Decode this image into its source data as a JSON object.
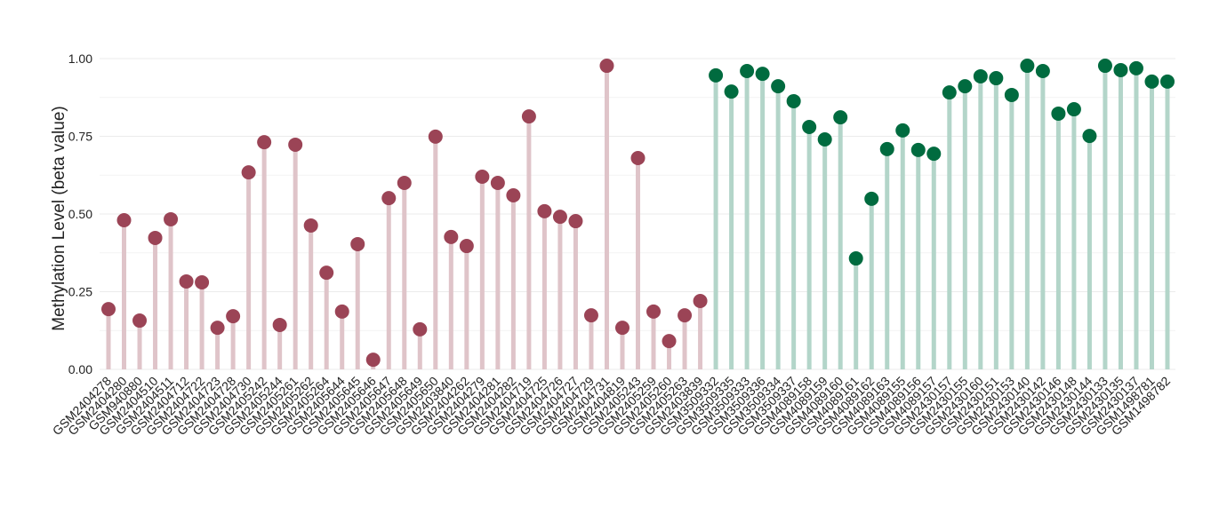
{
  "chart_data": {
    "type": "lollipop",
    "y_label": "Methylation Level (beta value)",
    "categories": [
      "GSM2404278",
      "GSM2404280",
      "GSM940880",
      "GSM2404510",
      "GSM2404511",
      "GSM2404712",
      "GSM2404722",
      "GSM2404723",
      "GSM2404728",
      "GSM2404730",
      "GSM2405242",
      "GSM2405244",
      "GSM2405261",
      "GSM2405262",
      "GSM2405264",
      "GSM2405644",
      "GSM2405645",
      "GSM2405646",
      "GSM2405647",
      "GSM2405648",
      "GSM2405649",
      "GSM2405650",
      "GSM2403840",
      "GSM2404262",
      "GSM2404279",
      "GSM2404281",
      "GSM2404282",
      "GSM2404719",
      "GSM2404725",
      "GSM2404726",
      "GSM2404727",
      "GSM2404729",
      "GSM2404731",
      "GSM2404819",
      "GSM2405243",
      "GSM2405259",
      "GSM2405260",
      "GSM2405263",
      "GSM2403839",
      "GSM3509332",
      "GSM3509335",
      "GSM3509333",
      "GSM3509336",
      "GSM3509334",
      "GSM3509337",
      "GSM4089158",
      "GSM4089159",
      "GSM4089160",
      "GSM4089161",
      "GSM4089162",
      "GSM4089163",
      "GSM4089155",
      "GSM4089156",
      "GSM4089157",
      "GSM2430157",
      "GSM2430155",
      "GSM2430160",
      "GSM2430151",
      "GSM2430153",
      "GSM2430140",
      "GSM2430142",
      "GSM2430146",
      "GSM2430148",
      "GSM2430144",
      "GSM2430133",
      "GSM2430135",
      "GSM2430137",
      "GSM1498781",
      "GSM1498782"
    ],
    "series": [
      {
        "color": "#9b4456",
        "stem_color": "#dfc4c9",
        "values": [
          0.194,
          0.48,
          0.157,
          0.423,
          0.483,
          0.283,
          0.28,
          0.134,
          0.171,
          0.634,
          0.731,
          0.143,
          0.723,
          0.463,
          0.311,
          0.186,
          0.403,
          0.031,
          0.551,
          0.6,
          0.129,
          0.749,
          0.426,
          0.397,
          0.62,
          0.6,
          0.56,
          0.814,
          0.509,
          0.491,
          0.477,
          0.174,
          0.977,
          0.134,
          0.68,
          0.186,
          0.091,
          0.174,
          0.22,
          null,
          null,
          null,
          null,
          null,
          null,
          null,
          null,
          null,
          null,
          null,
          null,
          null,
          null,
          null,
          null,
          null,
          null,
          null,
          null,
          null,
          null,
          null,
          null,
          null,
          null,
          null,
          null,
          null,
          null
        ]
      },
      {
        "color": "#006b3f",
        "stem_color": "#b3d5c9",
        "values": [
          null,
          null,
          null,
          null,
          null,
          null,
          null,
          null,
          null,
          null,
          null,
          null,
          null,
          null,
          null,
          null,
          null,
          null,
          null,
          null,
          null,
          null,
          null,
          null,
          null,
          null,
          null,
          null,
          null,
          null,
          null,
          null,
          null,
          null,
          null,
          null,
          null,
          null,
          null,
          0.946,
          0.894,
          0.96,
          0.951,
          0.911,
          0.863,
          0.78,
          0.74,
          0.811,
          0.357,
          0.549,
          0.709,
          0.769,
          0.706,
          0.694,
          0.891,
          0.911,
          0.943,
          0.937,
          0.883,
          0.977,
          0.96,
          0.823,
          0.837,
          0.751,
          0.977,
          0.963,
          0.969,
          0.926,
          0.926
        ]
      }
    ],
    "ylim": [
      0,
      1
    ],
    "yticks": [
      {
        "value": 0,
        "label": "0.00"
      },
      {
        "value": 0.25,
        "label": "0.25"
      },
      {
        "value": 0.5,
        "label": "0.50"
      },
      {
        "value": 0.75,
        "label": "0.75"
      },
      {
        "value": 1,
        "label": "1.00"
      }
    ],
    "minor_yticks": [
      0.125,
      0.375,
      0.625,
      0.875
    ],
    "grid": true
  }
}
